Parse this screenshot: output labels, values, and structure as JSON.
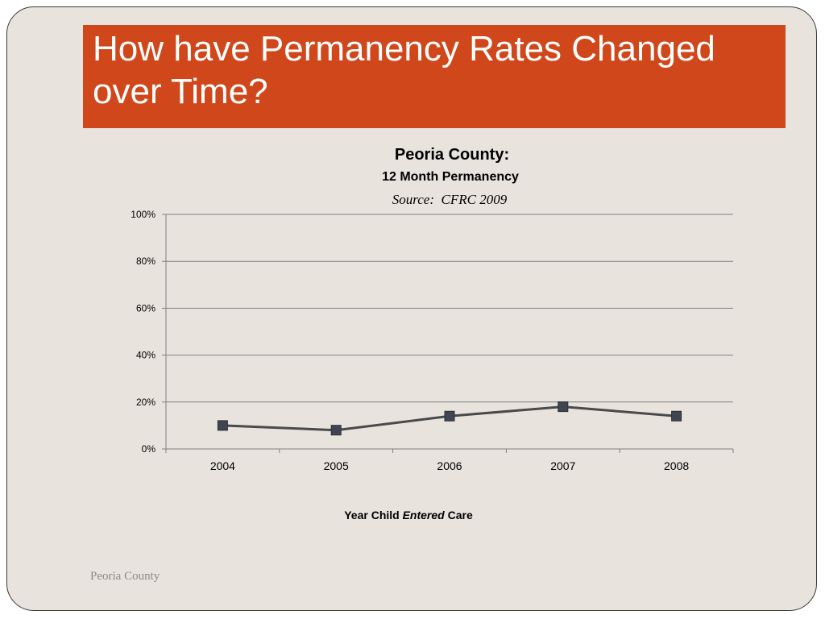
{
  "slide": {
    "title": "How have Permanency Rates Changed over Time?",
    "footer": "Peoria County"
  },
  "colors": {
    "title_bar": "#d0471b",
    "background": "#e8e4dd",
    "line": "#4a4a4a",
    "marker": "#3f4651",
    "grid": "#808080"
  },
  "chart_data": {
    "type": "line",
    "title": "Peoria County:",
    "subtitle": "12 Month Permanency",
    "source": "Source:  CFRC 2009",
    "xlabel_parts": [
      "Year Child ",
      "Entered",
      " Care"
    ],
    "ylabel": "",
    "categories": [
      "2004",
      "2005",
      "2006",
      "2007",
      "2008"
    ],
    "series": [
      {
        "values": [
          10,
          8,
          14,
          18,
          14
        ]
      }
    ],
    "ylim": [
      0,
      100
    ],
    "yticks": [
      0,
      20,
      40,
      60,
      80,
      100
    ],
    "ytick_labels": [
      "0%",
      "20%",
      "40%",
      "60%",
      "80%",
      "100%"
    ],
    "grid": true,
    "marker": "square",
    "legend": "none"
  }
}
